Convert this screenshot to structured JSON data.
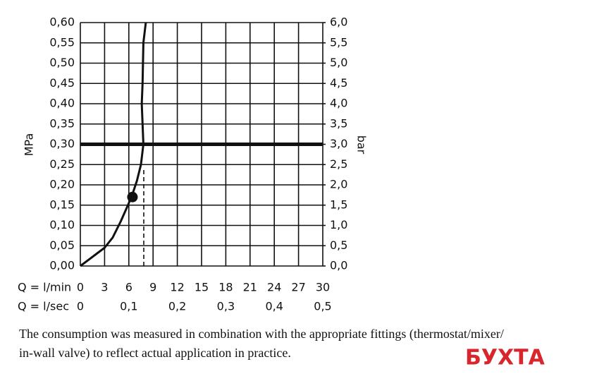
{
  "chart_data": {
    "type": "line",
    "y_label": "MPa",
    "y2_label": "bar",
    "x_row_label": "Q = l/min",
    "x2_row_label": "Q = l/sec",
    "x": [
      0,
      2,
      3,
      4,
      5,
      6,
      6.5,
      7,
      7.5,
      7.8,
      7.7,
      7.6,
      7.7,
      7.8,
      8.1
    ],
    "series": [
      {
        "color": "#111111",
        "values": [
          0,
          0.03,
          0.045,
          0.07,
          0.11,
          0.155,
          0.18,
          0.21,
          0.25,
          0.3,
          0.35,
          0.4,
          0.45,
          0.55,
          0.6
        ]
      }
    ],
    "xlim": [
      0,
      30
    ],
    "xticks": [
      0,
      3,
      6,
      9,
      12,
      15,
      18,
      21,
      24,
      27,
      30
    ],
    "x2lim": [
      0,
      0.5
    ],
    "x2ticks": [
      0,
      {
        "value": 0.1,
        "label": "0,1"
      },
      {
        "value": 0.2,
        "label": "0,2"
      },
      {
        "value": 0.3,
        "label": "0,3"
      },
      {
        "value": 0.4,
        "label": "0,4"
      },
      {
        "value": 0.5,
        "label": "0,5"
      }
    ],
    "ylim": [
      0,
      0.6
    ],
    "yticks": [
      {
        "value": 0,
        "label": "0,00"
      },
      {
        "value": 0.05,
        "label": "0,05"
      },
      {
        "value": 0.1,
        "label": "0,10"
      },
      {
        "value": 0.15,
        "label": "0,15"
      },
      {
        "value": 0.2,
        "label": "0,20"
      },
      {
        "value": 0.25,
        "label": "0,25"
      },
      {
        "value": 0.3,
        "label": "0,30"
      },
      {
        "value": 0.35,
        "label": "0,35"
      },
      {
        "value": 0.4,
        "label": "0,40"
      },
      {
        "value": 0.45,
        "label": "0,45"
      },
      {
        "value": 0.5,
        "label": "0,50"
      },
      {
        "value": 0.55,
        "label": "0,55"
      },
      {
        "value": 0.6,
        "label": "0,60"
      }
    ],
    "y2lim": [
      0,
      6
    ],
    "y2ticks": [
      {
        "value": 0,
        "label": "0,0"
      },
      {
        "value": 0.5,
        "label": "0,5"
      },
      {
        "value": 1,
        "label": "1,0"
      },
      {
        "value": 1.5,
        "label": "1,5"
      },
      {
        "value": 2,
        "label": "2,0"
      },
      {
        "value": 2.5,
        "label": "2,5"
      },
      {
        "value": 3,
        "label": "3,0"
      },
      {
        "value": 3.5,
        "label": "3,5"
      },
      {
        "value": 4,
        "label": "4,0"
      },
      {
        "value": 4.5,
        "label": "4,5"
      },
      {
        "value": 5,
        "label": "5,0"
      },
      {
        "value": 5.5,
        "label": "5,5"
      },
      {
        "value": 6,
        "label": "6,0"
      }
    ],
    "grid": true,
    "hline": 0.3,
    "point": {
      "x": 6.45,
      "y": 0.17
    },
    "dashed_vline": {
      "x": 7.85,
      "y": [
        0,
        0.24
      ]
    },
    "caption": [
      "The consumption was measured in combination with the appropriate fittings (thermostat/mixer/",
      "in-wall valve) to reflect actual application in practice."
    ],
    "watermark": "БУХТА"
  }
}
